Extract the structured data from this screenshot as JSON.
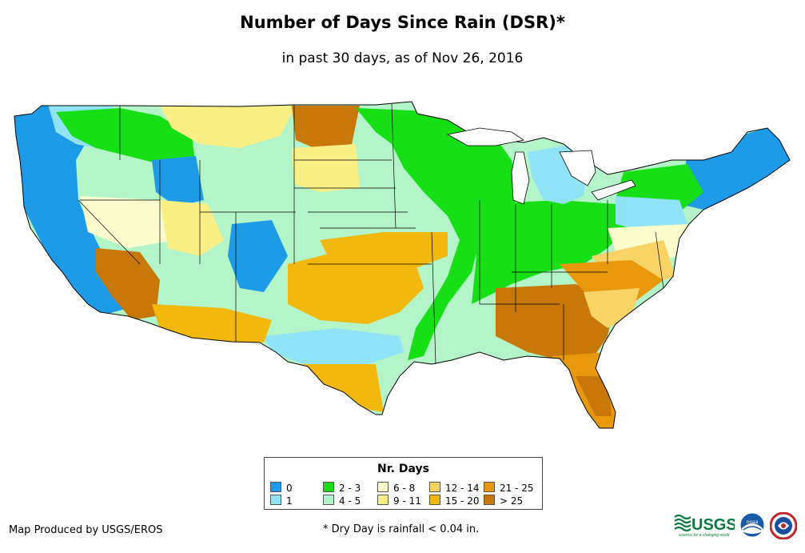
{
  "title": "Number of Days Since Rain (DSR)*",
  "subtitle": "in past 30 days, as of Nov 26, 2016",
  "legend": {
    "title": "Nr. Days",
    "items": [
      {
        "label": "0",
        "color": "#1e9be6"
      },
      {
        "label": "1",
        "color": "#8fe3f5"
      },
      {
        "label": "2 - 3",
        "color": "#16df16"
      },
      {
        "label": "4 - 5",
        "color": "#b3f5c9"
      },
      {
        "label": "6 - 8",
        "color": "#fdfccc"
      },
      {
        "label": "9 - 11",
        "color": "#f9ef85"
      },
      {
        "label": "12 - 14",
        "color": "#f9d366"
      },
      {
        "label": "15 - 20",
        "color": "#f2b80d"
      },
      {
        "label": "21 - 25",
        "color": "#e8980c"
      },
      {
        "label": "> 25",
        "color": "#c87808"
      }
    ]
  },
  "credit": "Map Produced by USGS/EROS",
  "footnote": "* Dry Day is rainfall < 0.04 in.",
  "logos": {
    "usgs": "USGS",
    "usgs_tagline": "science for a changing world",
    "noaa": "noaa"
  }
}
